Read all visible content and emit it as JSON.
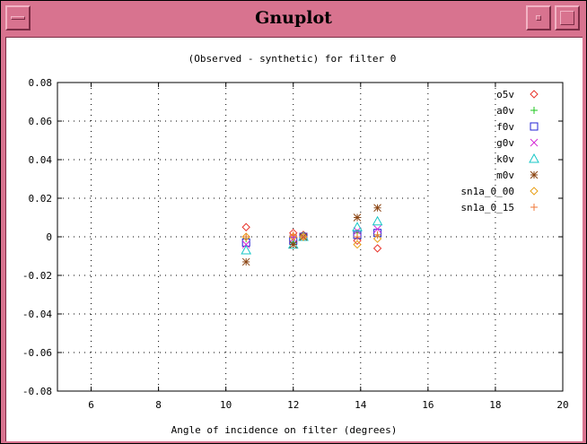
{
  "window": {
    "title": "Gnuplot"
  },
  "colors": {
    "title_bar": "#d8738f",
    "plot_background": "#ffffff"
  },
  "chart_data": {
    "type": "scatter",
    "title": "(Observed - synthetic) for filter 0",
    "xlabel": "Angle of incidence on filter (degrees)",
    "ylabel": "",
    "xlim": [
      5,
      20
    ],
    "ylim": [
      -0.08,
      0.08
    ],
    "x_ticks": [
      6,
      8,
      10,
      12,
      14,
      16,
      18,
      20
    ],
    "y_ticks": [
      0.08,
      0.06,
      0.04,
      0.02,
      0,
      -0.02,
      -0.04,
      -0.06,
      -0.08
    ],
    "x_tick_labels": [
      "6",
      "8",
      "10",
      "12",
      "14",
      "16",
      "18",
      "20"
    ],
    "y_tick_labels": [
      "0.08",
      "0.06",
      "0.04",
      "0.02",
      "0",
      "-0.02",
      "-0.04",
      "-0.06",
      "-0.08"
    ],
    "grid": true,
    "legend_position": "top-right",
    "series": [
      {
        "name": "o5v",
        "marker": "diamond",
        "color": "#e8352c",
        "x": [
          10.6,
          12.0,
          12.3,
          13.9,
          14.5
        ],
        "y": [
          0.005,
          0.002,
          0.001,
          -0.002,
          -0.006
        ]
      },
      {
        "name": "a0v",
        "marker": "plus",
        "color": "#1fc71f",
        "x": [
          10.6,
          12.0,
          12.3,
          13.9,
          14.5
        ],
        "y": [
          -0.001,
          -0.003,
          0.0,
          0.002,
          0.001
        ]
      },
      {
        "name": "f0v",
        "marker": "square",
        "color": "#2323d6",
        "x": [
          10.6,
          12.0,
          12.3,
          13.9,
          14.5
        ],
        "y": [
          -0.003,
          -0.002,
          0.0,
          0.001,
          0.002
        ]
      },
      {
        "name": "g0v",
        "marker": "cross",
        "color": "#d629d6",
        "x": [
          10.6,
          12.0,
          12.3,
          13.9,
          14.5
        ],
        "y": [
          -0.004,
          -0.001,
          0.0,
          0.003,
          0.004
        ]
      },
      {
        "name": "k0v",
        "marker": "triangle",
        "color": "#15c6c6",
        "x": [
          10.6,
          12.0,
          12.3,
          13.9,
          14.5
        ],
        "y": [
          -0.007,
          -0.004,
          0.0,
          0.005,
          0.008
        ]
      },
      {
        "name": "m0v",
        "marker": "star",
        "color": "#8b4513",
        "x": [
          10.6,
          12.0,
          12.3,
          13.9,
          14.5
        ],
        "y": [
          -0.013,
          -0.004,
          0.0,
          0.01,
          0.015
        ]
      },
      {
        "name": "sn1a_0_00",
        "marker": "diamond",
        "color": "#e8a018",
        "x": [
          10.6,
          12.0,
          12.3,
          13.9,
          14.5
        ],
        "y": [
          0.0,
          0.0,
          0.0,
          -0.004,
          -0.001
        ]
      },
      {
        "name": "sn1a_0_15",
        "marker": "plus",
        "color": "#f07838",
        "x": [
          10.6,
          12.0,
          12.3,
          13.9,
          14.5
        ],
        "y": [
          0.0,
          0.001,
          0.0,
          0.0,
          0.001
        ]
      }
    ]
  }
}
